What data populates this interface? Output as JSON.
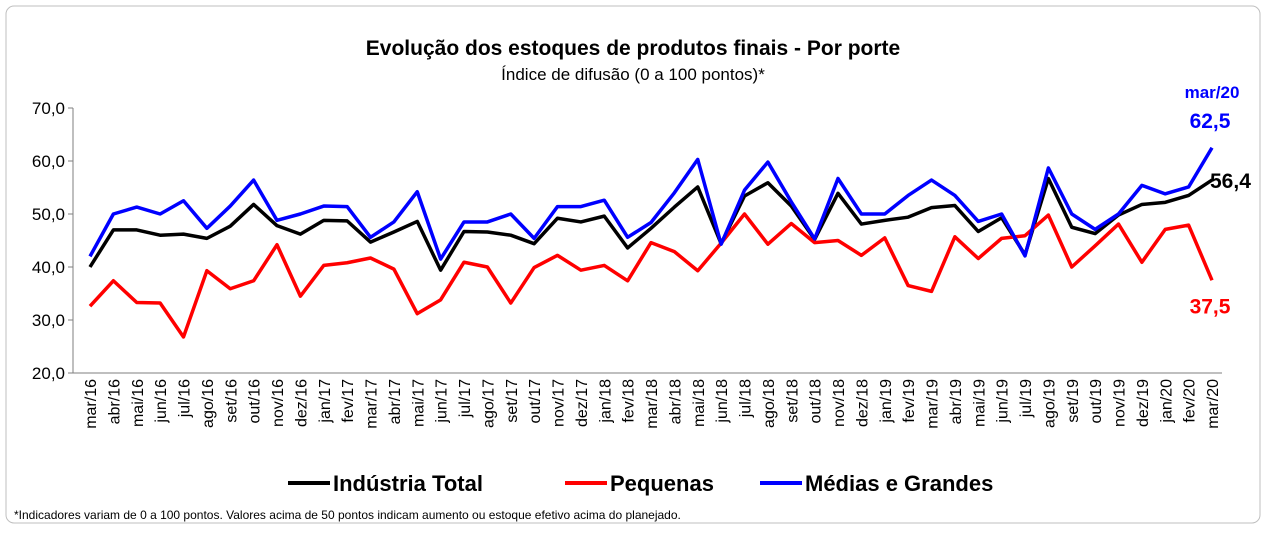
{
  "chart_data": {
    "type": "line",
    "title": "Evolução dos estoques de produtos finais - Por porte",
    "subtitle": "Índice de difusão (0 a 100 pontos)*",
    "annotation": "mar/20",
    "footnote": "*Indicadores variam de 0 a 100 pontos. Valores acima de 50 pontos indicam aumento ou estoque efetivo acima do planejado.",
    "categories": [
      "mar/16",
      "abr/16",
      "mai/16",
      "jun/16",
      "jul/16",
      "ago/16",
      "set/16",
      "out/16",
      "nov/16",
      "dez/16",
      "jan/17",
      "fev/17",
      "mar/17",
      "abr/17",
      "mai/17",
      "jun/17",
      "jul/17",
      "ago/17",
      "set/17",
      "out/17",
      "nov/17",
      "dez/17",
      "jan/18",
      "fev/18",
      "mar/18",
      "abr/18",
      "mai/18",
      "jun/18",
      "jul/18",
      "ago/18",
      "set/18",
      "out/18",
      "nov/18",
      "dez/18",
      "jan/19",
      "fev/19",
      "mar/19",
      "abr/19",
      "mai/19",
      "jun/19",
      "jul/19",
      "ago/19",
      "set/19",
      "out/19",
      "nov/19",
      "dez/19",
      "jan/20",
      "fev/20",
      "mar/20"
    ],
    "series": [
      {
        "name": "Indústria Total",
        "color": "#000000",
        "values": [
          40,
          47,
          47,
          46,
          46.2,
          45.4,
          47.7,
          51.8,
          47.8,
          46.2,
          48.8,
          48.7,
          44.7,
          46.6,
          48.6,
          39.4,
          46.7,
          46.6,
          46,
          44.4,
          49.2,
          48.5,
          49.6,
          43.6,
          47.3,
          51.3,
          55.1,
          44.4,
          53.4,
          55.9,
          51.5,
          45.2,
          53.9,
          48.1,
          48.8,
          49.4,
          51.2,
          51.6,
          46.7,
          49.3,
          42.3,
          56.7,
          47.5,
          46.3,
          49.8,
          51.8,
          52.2,
          53.5,
          56.4
        ],
        "value_labels": [
          null,
          null,
          null,
          null,
          null,
          null,
          null,
          null,
          null,
          null,
          null,
          null,
          null,
          null,
          null,
          null,
          null,
          null,
          null,
          null,
          null,
          null,
          null,
          null,
          null,
          null,
          null,
          null,
          null,
          null,
          null,
          null,
          null,
          null,
          null,
          null,
          null,
          null,
          null,
          null,
          null,
          null,
          null,
          null,
          null,
          null,
          null,
          null,
          "56,4"
        ]
      },
      {
        "name": "Pequenas",
        "color": "#ff0000",
        "values": [
          32.6,
          37.4,
          33.3,
          33.2,
          26.8,
          39.3,
          35.9,
          37.4,
          44.2,
          34.5,
          40.3,
          40.8,
          41.7,
          39.6,
          31.2,
          33.8,
          40.9,
          40,
          33.2,
          39.9,
          42.2,
          39.4,
          40.3,
          37.4,
          44.6,
          42.9,
          39.3,
          44.5,
          50,
          44.3,
          48.2,
          44.6,
          45,
          42.2,
          45.5,
          36.5,
          35.4,
          45.7,
          41.6,
          45.4,
          45.9,
          49.8,
          40,
          44,
          48.1,
          40.9,
          47.1,
          47.9,
          37.5
        ],
        "value_labels": [
          null,
          null,
          null,
          null,
          null,
          null,
          null,
          null,
          null,
          null,
          null,
          null,
          null,
          null,
          null,
          null,
          null,
          null,
          null,
          null,
          null,
          null,
          null,
          null,
          null,
          null,
          null,
          null,
          null,
          null,
          null,
          null,
          null,
          null,
          null,
          null,
          null,
          null,
          null,
          null,
          null,
          null,
          null,
          null,
          null,
          null,
          null,
          null,
          "37,5"
        ]
      },
      {
        "name": "Médias e Grandes",
        "color": "#0000ff",
        "values": [
          42,
          50,
          51.3,
          50,
          52.5,
          47.3,
          51.5,
          56.4,
          48.8,
          50,
          51.5,
          51.4,
          45.6,
          48.5,
          54.2,
          41.5,
          48.5,
          48.5,
          50,
          45.4,
          51.4,
          51.4,
          52.6,
          45.6,
          48.4,
          54,
          60.3,
          44.3,
          54.5,
          59.8,
          52.3,
          45.3,
          56.7,
          50,
          50,
          53.5,
          56.4,
          53.5,
          48.6,
          50,
          42.1,
          58.7,
          50,
          47.1,
          50,
          55.4,
          53.8,
          55.1,
          62.5
        ],
        "value_labels": [
          null,
          null,
          null,
          null,
          null,
          null,
          null,
          null,
          null,
          null,
          null,
          null,
          null,
          null,
          null,
          null,
          null,
          null,
          null,
          null,
          null,
          null,
          null,
          null,
          null,
          null,
          null,
          null,
          null,
          null,
          null,
          null,
          null,
          null,
          null,
          null,
          null,
          null,
          null,
          null,
          null,
          null,
          null,
          null,
          null,
          null,
          null,
          null,
          "62,5"
        ]
      }
    ],
    "ylim": [
      20,
      70
    ],
    "yticks": [
      {
        "value": 20,
        "label": "20,0"
      },
      {
        "value": 30,
        "label": "30,0"
      },
      {
        "value": 40,
        "label": "40,0"
      },
      {
        "value": 50,
        "label": "50,0"
      },
      {
        "value": 60,
        "label": "60,0"
      },
      {
        "value": 70,
        "label": "70,0"
      }
    ],
    "grid": false,
    "legend": "bottom"
  }
}
